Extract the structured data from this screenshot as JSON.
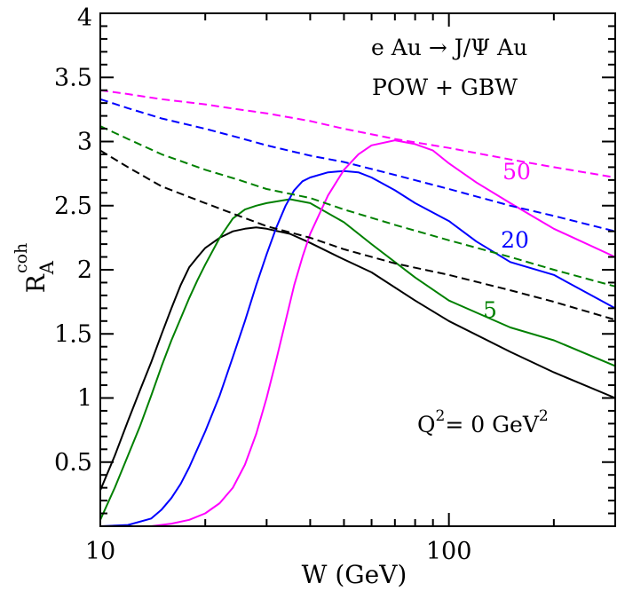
{
  "chart_data": {
    "type": "line",
    "title": "",
    "xlabel": "W (GeV)",
    "ylabel": {
      "base": "R",
      "sub": "A",
      "sup": "coh"
    },
    "xscale": "log",
    "xlim": [
      10,
      300
    ],
    "ylim": [
      0,
      4
    ],
    "x_ticks": [
      {
        "value": 10,
        "label": "10"
      },
      {
        "value": 100,
        "label": "100"
      }
    ],
    "y_ticks": [
      {
        "value": 0.5,
        "label": "0.5"
      },
      {
        "value": 1,
        "label": "1"
      },
      {
        "value": 1.5,
        "label": "1.5"
      },
      {
        "value": 2,
        "label": "2"
      },
      {
        "value": 2.5,
        "label": "2.5"
      },
      {
        "value": 3,
        "label": "3"
      },
      {
        "value": 3.5,
        "label": "3.5"
      },
      {
        "value": 4,
        "label": "4"
      }
    ],
    "annotations": {
      "process": {
        "text": "e Au  → J/Ψ Au"
      },
      "model": {
        "text": "POW + GBW"
      },
      "q2": {
        "prefix": "Q",
        "sup1": "2",
        "mid": "= 0 GeV",
        "sup2": "2"
      }
    },
    "series": [
      {
        "name": "Q2=0 solid",
        "color": "#000000",
        "style": "solid",
        "label": "",
        "x": [
          10,
          11,
          12,
          13,
          14,
          15,
          16,
          17,
          18,
          19,
          20,
          22,
          24,
          26,
          28,
          30,
          35,
          40,
          50,
          60,
          80,
          100,
          150,
          200,
          300
        ],
        "y": [
          0.28,
          0.55,
          0.82,
          1.06,
          1.28,
          1.5,
          1.7,
          1.88,
          2.02,
          2.1,
          2.17,
          2.25,
          2.3,
          2.32,
          2.33,
          2.32,
          2.28,
          2.21,
          2.08,
          1.98,
          1.76,
          1.6,
          1.36,
          1.2,
          1.0
        ]
      },
      {
        "name": "Q2=5 solid",
        "color": "#008000",
        "style": "solid",
        "label": "5",
        "x": [
          10,
          11,
          12,
          13,
          14,
          15,
          16,
          17,
          18,
          19,
          20,
          22,
          24,
          26,
          28,
          30,
          35,
          40,
          50,
          60,
          80,
          100,
          150,
          200,
          300
        ],
        "y": [
          0.05,
          0.3,
          0.55,
          0.78,
          1.02,
          1.25,
          1.45,
          1.62,
          1.78,
          1.92,
          2.04,
          2.25,
          2.4,
          2.47,
          2.5,
          2.52,
          2.55,
          2.52,
          2.37,
          2.2,
          1.94,
          1.76,
          1.55,
          1.45,
          1.25
        ]
      },
      {
        "name": "Q2=20 solid",
        "color": "#0000ff",
        "style": "solid",
        "label": "20",
        "x": [
          10,
          12,
          14,
          15,
          16,
          17,
          18,
          20,
          22,
          24,
          26,
          28,
          30,
          32,
          34,
          36,
          38,
          40,
          45,
          50,
          55,
          60,
          70,
          80,
          100,
          120,
          150,
          200,
          300
        ],
        "y": [
          0.0,
          0.01,
          0.06,
          0.13,
          0.22,
          0.33,
          0.46,
          0.74,
          1.02,
          1.32,
          1.6,
          1.88,
          2.12,
          2.33,
          2.5,
          2.62,
          2.69,
          2.72,
          2.76,
          2.77,
          2.76,
          2.72,
          2.62,
          2.52,
          2.38,
          2.22,
          2.06,
          1.96,
          1.7
        ]
      },
      {
        "name": "Q2=50 solid",
        "color": "#ff00ff",
        "style": "solid",
        "label": "50",
        "x": [
          10,
          14,
          16,
          18,
          20,
          22,
          24,
          26,
          28,
          30,
          32,
          34,
          36,
          38,
          40,
          45,
          50,
          55,
          60,
          70,
          80,
          90,
          100,
          120,
          150,
          200,
          300
        ],
        "y": [
          0.0,
          0.0,
          0.02,
          0.05,
          0.1,
          0.18,
          0.3,
          0.48,
          0.72,
          1.0,
          1.3,
          1.6,
          1.88,
          2.1,
          2.28,
          2.58,
          2.78,
          2.9,
          2.97,
          3.01,
          2.98,
          2.93,
          2.83,
          2.68,
          2.52,
          2.32,
          2.1
        ]
      },
      {
        "name": "Q2=0 dashed",
        "color": "#000000",
        "style": "dashed",
        "label": "",
        "x": [
          10,
          12,
          15,
          20,
          25,
          30,
          40,
          50,
          70,
          100,
          150,
          200,
          300
        ],
        "y": [
          2.93,
          2.8,
          2.65,
          2.52,
          2.42,
          2.34,
          2.25,
          2.16,
          2.05,
          1.96,
          1.84,
          1.75,
          1.61
        ]
      },
      {
        "name": "Q2=5 dashed",
        "color": "#008000",
        "style": "dashed",
        "label": "",
        "x": [
          10,
          12,
          15,
          20,
          25,
          30,
          40,
          50,
          70,
          100,
          150,
          200,
          300
        ],
        "y": [
          3.12,
          3.02,
          2.9,
          2.78,
          2.7,
          2.63,
          2.56,
          2.47,
          2.35,
          2.23,
          2.1,
          2.0,
          1.87
        ]
      },
      {
        "name": "Q2=20 dashed",
        "color": "#0000ff",
        "style": "dashed",
        "label": "",
        "x": [
          10,
          12,
          15,
          20,
          25,
          30,
          40,
          50,
          70,
          100,
          150,
          200,
          300
        ],
        "y": [
          3.33,
          3.26,
          3.18,
          3.1,
          3.03,
          2.97,
          2.89,
          2.84,
          2.74,
          2.63,
          2.5,
          2.42,
          2.3
        ]
      },
      {
        "name": "Q2=50 dashed",
        "color": "#ff00ff",
        "style": "dashed",
        "label": "",
        "x": [
          10,
          12,
          15,
          20,
          25,
          30,
          40,
          50,
          70,
          100,
          150,
          200,
          300
        ],
        "y": [
          3.4,
          3.37,
          3.33,
          3.29,
          3.25,
          3.22,
          3.16,
          3.1,
          3.02,
          2.95,
          2.86,
          2.8,
          2.72
        ]
      }
    ]
  }
}
